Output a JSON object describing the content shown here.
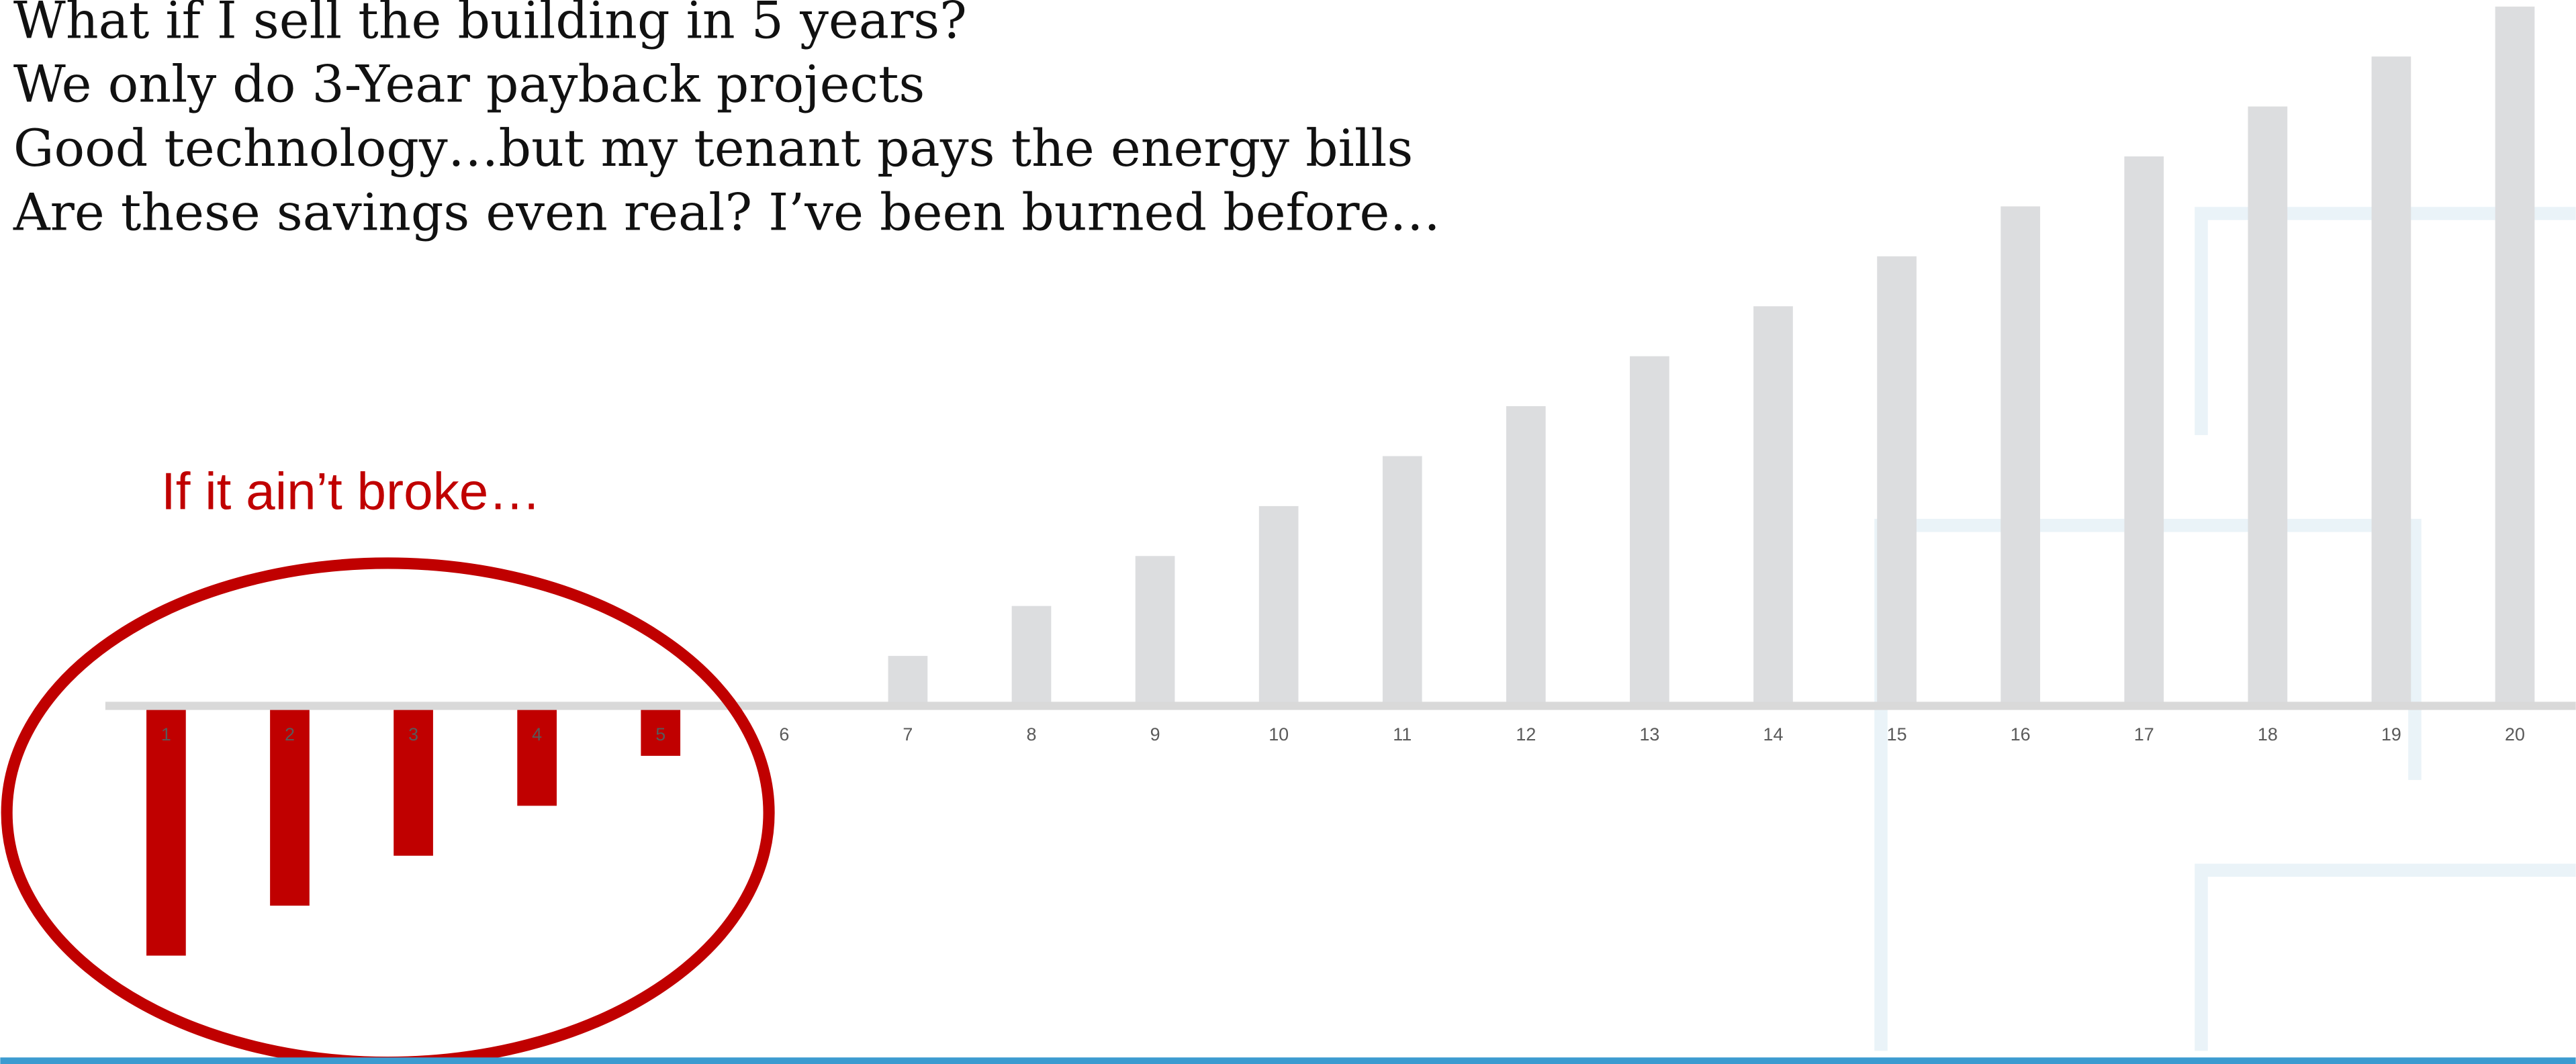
{
  "lines": [
    "What if I sell the building in 5 years?",
    "We only do 3-Year payback projects",
    "Good technology…but my tenant pays the energy bills",
    "Are these savings even real? I’ve been burned before…"
  ],
  "chart_data": {
    "type": "bar",
    "annotation": "If it ain’t broke…",
    "categories": [
      "1",
      "2",
      "3",
      "4",
      "5",
      "6",
      "7",
      "8",
      "9",
      "10",
      "11",
      "12",
      "13",
      "14",
      "15",
      "16",
      "17",
      "18",
      "19",
      "20"
    ],
    "values": [
      -5,
      -4,
      -3,
      -2,
      -1,
      0,
      1,
      2,
      3,
      4,
      5,
      6,
      7,
      8,
      9,
      10,
      11,
      12,
      13,
      14
    ],
    "color": "#dcdddf",
    "negative_color": "#c00000",
    "ylim": [
      -5,
      14
    ]
  }
}
